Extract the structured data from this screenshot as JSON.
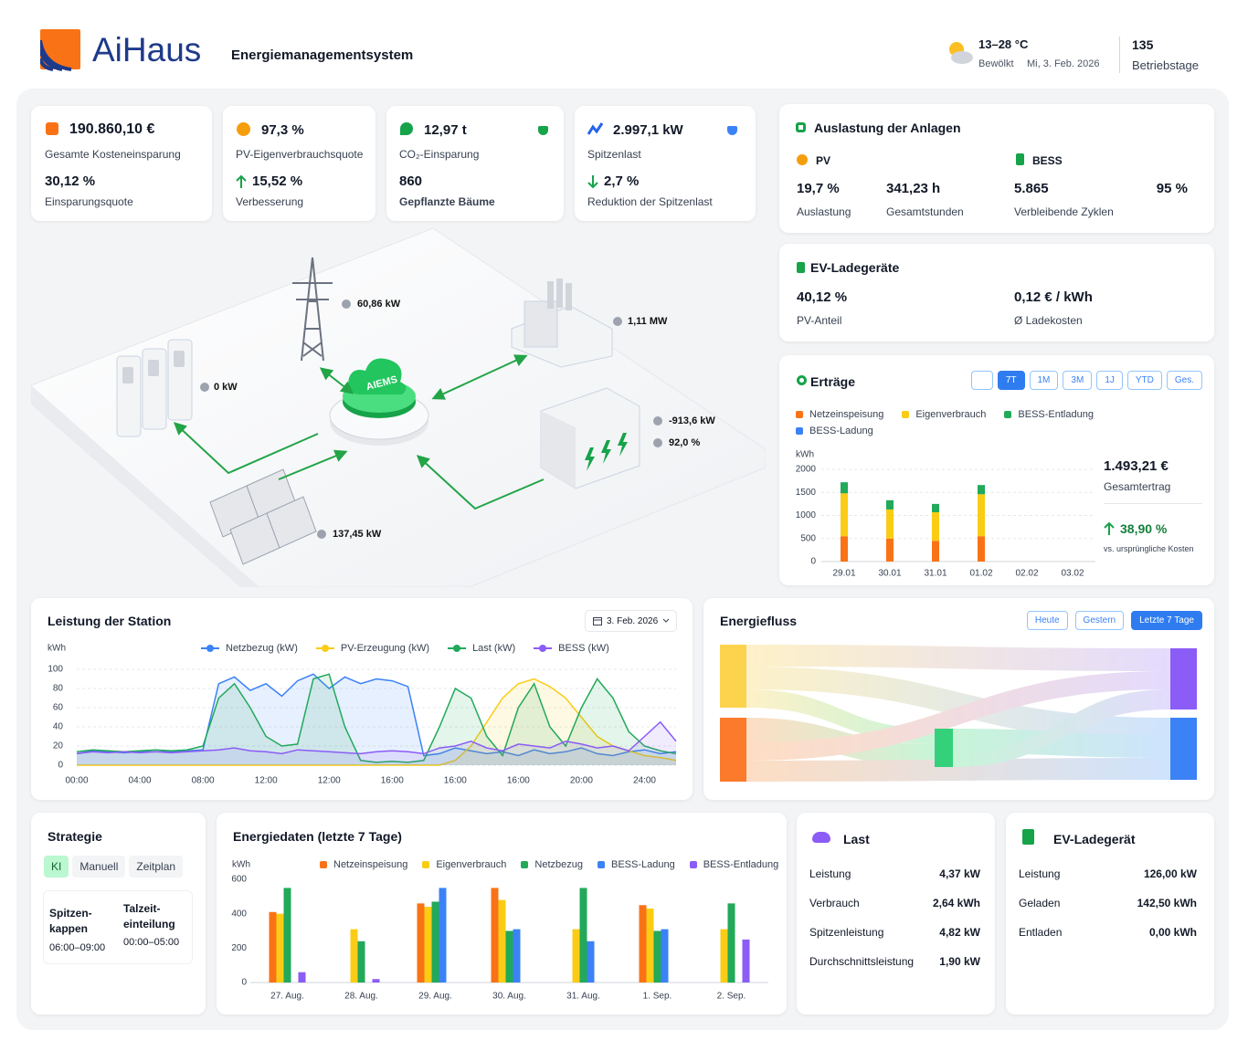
{
  "header": {
    "logo": "AiHaus",
    "subtitle": "Energiemanagementsystem",
    "temperature": "13–28 °C",
    "weather": "Bewölkt",
    "date": "Mi, 3. Feb. 2026",
    "operating_days": "135",
    "operating_days_label": "Betriebstage"
  },
  "kpis": [
    {
      "value": "190.860,10 €",
      "label": "Gesamte Kosteneinsparung",
      "sub_value": "30,12 %",
      "sub_label": "Einsparungsquote"
    },
    {
      "value": "97,3 %",
      "label": "PV-Eigenverbrauchsquote",
      "sub_value": "15,52 %",
      "sub_label": "Verbesserung"
    },
    {
      "value": "12,97 t",
      "label": "CO₂-Einsparung",
      "sub_value": "860",
      "sub_label": "Gepflanzte Bäume"
    },
    {
      "value": "2.997,1 kW",
      "label": "Spitzenlast",
      "sub_value": "2,7 %",
      "sub_label": "Reduktion der Spitzenlast"
    }
  ],
  "diagram": {
    "hub": "AIEMS",
    "grid": "60,86 kW",
    "factory": "1,11 MW",
    "chargers": "0 kW",
    "battery_power": "-913,6 kW",
    "battery_soc": "92,0 %",
    "pv": "137,45 kW"
  },
  "utilization": {
    "title": "Auslastung der Anlagen",
    "pv": {
      "name": "PV",
      "value": "19,7 %",
      "label": "Auslastung",
      "hours": "341,23 h",
      "hours_label": "Gesamtstunden"
    },
    "bess": {
      "name": "BESS",
      "cycles": "5.865",
      "cycles_label": "Verbleibende Zyklen",
      "health": "95 %"
    }
  },
  "ev_chargers": {
    "title": "EV-Ladegeräte",
    "pv_share": "40,12 %",
    "pv_share_label": "PV-Anteil",
    "cost": "0,12 € / kWh",
    "cost_label": "Ø Ladekosten"
  },
  "yields": {
    "title": "Erträge",
    "tabs": [
      "7T",
      "1M",
      "3M",
      "1J",
      "YTD",
      "Ges."
    ],
    "active_tab": "7T",
    "total": "1.493,21 €",
    "total_label": "Gesamtertrag",
    "change": "38,90 %",
    "change_label": "vs. ursprüngliche Kosten",
    "chart": {
      "type": "bar",
      "stacked": true,
      "y_label": "kWh",
      "grid": true,
      "categories": [
        "29.01",
        "30.01",
        "31.01",
        "01.02",
        "02.02",
        "03.02"
      ],
      "series": [
        {
          "name": "Netzeinspeisung",
          "color": "#f97316",
          "values": [
            550,
            500,
            450,
            550,
            null,
            null
          ]
        },
        {
          "name": "Eigenverbrauch",
          "color": "#facc15",
          "values": [
            930,
            630,
            620,
            910,
            null,
            null
          ]
        },
        {
          "name": "BESS-Entladung",
          "color": "#22a95a",
          "values": [
            240,
            200,
            180,
            200,
            null,
            null
          ]
        },
        {
          "name": "BESS-Ladung",
          "color": "#3b82f6",
          "values": [
            null,
            null,
            null,
            null,
            null,
            null
          ]
        }
      ],
      "ylim": [
        0,
        2000
      ],
      "yticks": [
        0,
        500,
        1000,
        1500,
        2000
      ]
    }
  },
  "station": {
    "title": "Leistung der Station",
    "date": "3. Feb. 2026",
    "chart": {
      "type": "line",
      "y_label": "kWh",
      "grid": true,
      "area": true,
      "x": [
        0,
        1,
        2,
        3,
        4,
        5,
        6,
        7,
        8,
        9,
        10,
        11,
        12,
        13,
        14,
        15,
        16,
        17,
        18,
        19,
        20,
        21,
        22,
        23,
        24,
        25,
        26,
        27,
        28,
        29,
        30,
        31,
        32,
        33,
        34,
        35,
        36,
        37,
        38
      ],
      "series": [
        {
          "name": "Netzbezug (kW)",
          "color": "#3b82f6",
          "values": [
            12,
            15,
            14,
            13,
            14,
            14,
            14,
            15,
            16,
            85,
            92,
            78,
            85,
            72,
            88,
            95,
            80,
            92,
            85,
            90,
            88,
            82,
            10,
            12,
            18,
            15,
            12,
            14,
            10,
            16,
            12,
            14,
            18,
            12,
            10,
            14,
            16,
            12,
            14
          ]
        },
        {
          "name": "PV-Erzeugung (kW)",
          "color": "#facc15",
          "values": [
            0,
            0,
            0,
            0,
            0,
            0,
            0,
            0,
            0,
            0,
            0,
            0,
            0,
            0,
            0,
            0,
            0,
            0,
            0,
            0,
            0,
            0,
            0,
            0,
            5,
            20,
            45,
            70,
            85,
            90,
            82,
            70,
            50,
            30,
            20,
            15,
            10,
            8,
            5
          ]
        },
        {
          "name": "Last (kW)",
          "color": "#22a95a",
          "values": [
            14,
            16,
            15,
            14,
            15,
            16,
            15,
            16,
            20,
            70,
            85,
            60,
            30,
            20,
            22,
            90,
            95,
            40,
            5,
            3,
            4,
            3,
            5,
            40,
            80,
            70,
            30,
            10,
            60,
            85,
            40,
            20,
            60,
            90,
            70,
            35,
            20,
            15,
            12
          ]
        },
        {
          "name": "BESS (kW)",
          "color": "#8b5cf6",
          "values": [
            12,
            14,
            13,
            14,
            13,
            14,
            13,
            14,
            15,
            16,
            18,
            15,
            14,
            12,
            16,
            15,
            14,
            13,
            12,
            14,
            15,
            14,
            12,
            18,
            20,
            25,
            18,
            15,
            22,
            20,
            18,
            25,
            22,
            18,
            20,
            15,
            30,
            45,
            25
          ]
        }
      ],
      "xlim": [
        0,
        38
      ],
      "xticks": [
        {
          "value": 0,
          "label": "00:00"
        },
        {
          "value": 4,
          "label": "04:00"
        },
        {
          "value": 8,
          "label": "08:00"
        },
        {
          "value": 12,
          "label": "12:00"
        },
        {
          "value": 16,
          "label": "12:00"
        },
        {
          "value": 20,
          "label": "16:00"
        },
        {
          "value": 24,
          "label": "16:00"
        },
        {
          "value": 28,
          "label": "16:00"
        },
        {
          "value": 32,
          "label": "20:00"
        },
        {
          "value": 36,
          "label": "24:00"
        }
      ],
      "ylim": [
        0,
        100
      ],
      "yticks": [
        0,
        20,
        40,
        60,
        80,
        100
      ]
    }
  },
  "energy_flow": {
    "title": "Energiefluss",
    "tabs": [
      "Heute",
      "Gestern",
      "Letzte 7 Tage"
    ],
    "active_tab": "Letzte 7 Tage"
  },
  "strategy": {
    "title": "Strategie",
    "tabs": [
      "KI",
      "Manuell",
      "Zeitplan"
    ],
    "active_tab": "KI",
    "items": [
      {
        "name": "Spitzen-kappen",
        "time": "06:00–09:00"
      },
      {
        "name": "Talzeit-einteilung",
        "time": "00:00–05:00"
      }
    ]
  },
  "energy_data": {
    "title": "Energiedaten (letzte 7 Tage)",
    "chart": {
      "type": "bar",
      "stacked": false,
      "y_label": "kWh",
      "grid": false,
      "categories": [
        "27. Aug.",
        "28. Aug.",
        "29. Aug.",
        "30. Aug.",
        "31. Aug.",
        "1. Sep.",
        "2. Sep."
      ],
      "series": [
        {
          "name": "Netzeinspeisung",
          "color": "#f97316",
          "values": [
            410,
            null,
            460,
            550,
            null,
            450,
            null
          ]
        },
        {
          "name": "Eigenverbrauch",
          "color": "#facc15",
          "values": [
            400,
            310,
            440,
            480,
            310,
            430,
            310
          ]
        },
        {
          "name": "Netzbezug",
          "color": "#22a95a",
          "values": [
            550,
            240,
            470,
            300,
            550,
            300,
            460
          ]
        },
        {
          "name": "BESS-Ladung",
          "color": "#3b82f6",
          "values": [
            null,
            null,
            550,
            310,
            240,
            310,
            null
          ]
        },
        {
          "name": "BESS-Entladung",
          "color": "#8b5cf6",
          "values": [
            60,
            20,
            null,
            null,
            null,
            null,
            250
          ]
        }
      ],
      "ylim": [
        0,
        600
      ],
      "yticks": [
        0,
        200,
        400,
        600
      ]
    }
  },
  "load": {
    "title": "Last",
    "rows": [
      [
        "Leistung",
        "4,37 kW"
      ],
      [
        "Verbrauch",
        "2,64 kWh"
      ],
      [
        "Spitzenleistung",
        "4,82 kW"
      ],
      [
        "Durchschnittsleistung",
        "1,90 kW"
      ]
    ]
  },
  "ev_charger": {
    "title": "EV-Ladegerät",
    "rows": [
      [
        "Leistung",
        "126,00 kW"
      ],
      [
        "Geladen",
        "142,50 kWh"
      ],
      [
        "Entladen",
        "0,00 kWh"
      ]
    ]
  }
}
